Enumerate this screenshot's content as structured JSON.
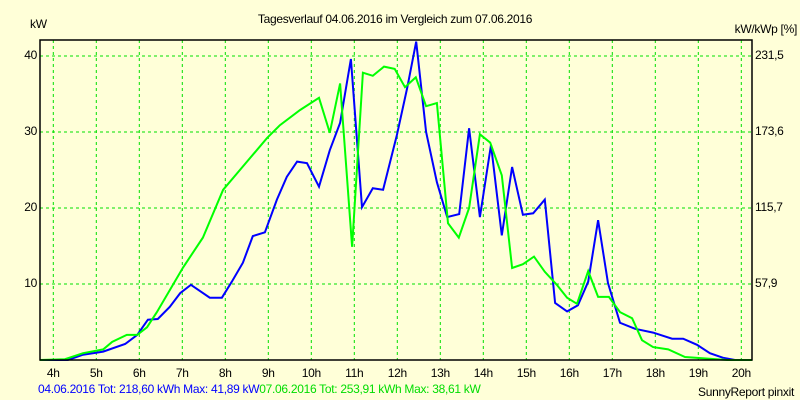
{
  "chart_data": {
    "type": "line",
    "title": "Tagesverlauf 04.06.2016 im Vergleich zum 07.06.2016",
    "ylabel": "kW",
    "ylabel_right": "kW/kWp [%]",
    "xlim": [
      3.69,
      20.25
    ],
    "ylim": [
      0,
      42.1
    ],
    "grid": true,
    "x_ticks": [
      4,
      5,
      6,
      7,
      8,
      9,
      10,
      11,
      12,
      13,
      14,
      15,
      16,
      17,
      18,
      19,
      20
    ],
    "x_tick_labels": [
      "4h",
      "5h",
      "6h",
      "7h",
      "8h",
      "9h",
      "10h",
      "11h",
      "12h",
      "13h",
      "14h",
      "15h",
      "16h",
      "17h",
      "18h",
      "19h",
      "20h"
    ],
    "y_ticks": [
      10,
      20,
      30,
      40
    ],
    "y_tick_labels": [
      "10",
      "20",
      "30",
      "40"
    ],
    "y_right_tick_labels": [
      "57,9",
      "115,7",
      "173,6",
      "231,5"
    ],
    "series": [
      {
        "name": "04.06.2016",
        "color": "#0000ff",
        "legend": "04.06.2016 Tot: 218,60 kWh Max: 41,89 kW",
        "x": [
          3.69,
          4.34,
          4.69,
          5.16,
          5.67,
          5.95,
          6.2,
          6.43,
          6.71,
          6.95,
          7.2,
          7.64,
          7.92,
          8.15,
          8.41,
          8.64,
          8.92,
          9.2,
          9.43,
          9.67,
          9.9,
          10.18,
          10.43,
          10.67,
          10.92,
          11.18,
          11.43,
          11.67,
          11.99,
          12.23,
          12.44,
          12.67,
          12.92,
          13.16,
          13.44,
          13.67,
          13.92,
          14.18,
          14.43,
          14.67,
          14.92,
          15.16,
          15.43,
          15.67,
          15.95,
          16.2,
          16.44,
          16.67,
          16.9,
          17.18,
          17.53,
          17.95,
          18.39,
          18.65,
          18.97,
          19.27,
          19.57,
          19.85,
          20.25
        ],
        "y": [
          0,
          0,
          0.7,
          1.1,
          2.1,
          3.3,
          5.3,
          5.4,
          7.0,
          8.8,
          9.9,
          8.2,
          8.2,
          10.3,
          12.8,
          16.3,
          16.8,
          21.1,
          24.1,
          26.1,
          25.9,
          22.8,
          27.6,
          31.2,
          39.6,
          20.1,
          22.6,
          22.4,
          29.6,
          35.8,
          41.9,
          30.0,
          23.4,
          18.8,
          19.2,
          30.5,
          18.8,
          28.3,
          16.4,
          25.4,
          19.1,
          19.3,
          21.1,
          7.5,
          6.4,
          7.2,
          10.3,
          18.4,
          10.1,
          4.9,
          4.1,
          3.6,
          2.8,
          2.8,
          2.0,
          0.9,
          0.3,
          0,
          0
        ]
      },
      {
        "name": "07.06.2016",
        "color": "#00ff00",
        "legend": "07.06.2016 Tot: 253,91 kWh Max: 38,61 kW",
        "x": [
          3.69,
          4.27,
          4.69,
          5.16,
          5.37,
          5.71,
          5.95,
          6.18,
          6.41,
          7.02,
          7.48,
          7.95,
          8.34,
          8.97,
          9.27,
          9.74,
          10.18,
          10.43,
          10.67,
          10.95,
          11.2,
          11.43,
          11.69,
          11.94,
          12.18,
          12.43,
          12.67,
          12.92,
          13.18,
          13.43,
          13.67,
          13.92,
          14.16,
          14.43,
          14.67,
          14.92,
          15.18,
          15.43,
          15.71,
          15.95,
          16.18,
          16.44,
          16.67,
          16.92,
          17.18,
          17.46,
          17.69,
          17.95,
          18.3,
          18.69,
          19.67,
          20.25
        ],
        "y": [
          0,
          0.1,
          0.9,
          1.4,
          2.4,
          3.3,
          3.3,
          4.3,
          6.3,
          12.2,
          16.1,
          22.4,
          25.0,
          29.2,
          30.9,
          32.9,
          34.5,
          29.9,
          36.4,
          14.9,
          37.8,
          37.4,
          38.6,
          38.3,
          35.9,
          37.2,
          33.4,
          33.8,
          18.0,
          16.1,
          20.0,
          29.7,
          28.6,
          24.3,
          12.1,
          12.6,
          13.6,
          11.6,
          9.9,
          8.2,
          7.4,
          11.7,
          8.3,
          8.3,
          6.3,
          5.5,
          2.6,
          1.7,
          1.4,
          0.4,
          0,
          0
        ]
      }
    ],
    "footer_right": "SunnyReport pinxit"
  }
}
